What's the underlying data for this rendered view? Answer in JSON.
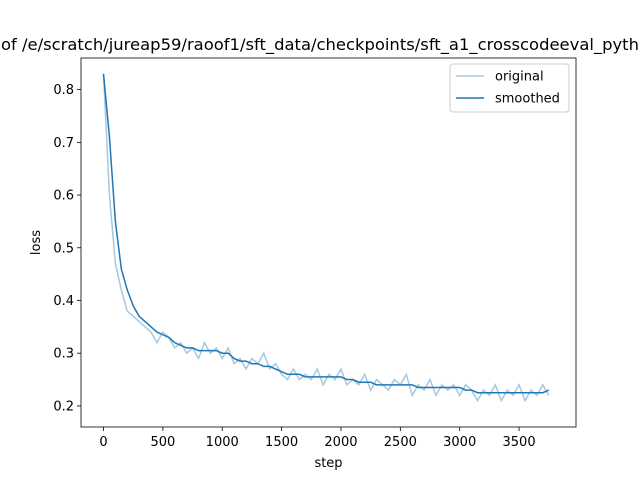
{
  "chart_data": {
    "type": "line",
    "title": "of /e/scratch/jureap59/raoof1/sft_data/checkpoints/sft_a1_crosscodeeval_pyth",
    "x_label": "step",
    "y_label": "loss",
    "x": [
      0,
      50,
      100,
      150,
      200,
      250,
      300,
      350,
      400,
      450,
      500,
      550,
      600,
      650,
      700,
      750,
      800,
      850,
      900,
      950,
      1000,
      1050,
      1100,
      1150,
      1200,
      1250,
      1300,
      1350,
      1400,
      1450,
      1500,
      1550,
      1600,
      1650,
      1700,
      1750,
      1800,
      1850,
      1900,
      1950,
      2000,
      2050,
      2100,
      2150,
      2200,
      2250,
      2300,
      2350,
      2400,
      2450,
      2500,
      2550,
      2600,
      2650,
      2700,
      2750,
      2800,
      2850,
      2900,
      2950,
      3000,
      3050,
      3100,
      3150,
      3200,
      3250,
      3300,
      3350,
      3400,
      3450,
      3500,
      3550,
      3600,
      3650,
      3700,
      3750
    ],
    "series": [
      {
        "name": "original",
        "color": "#a6c8e0",
        "values": [
          0.83,
          0.6,
          0.47,
          0.42,
          0.38,
          0.37,
          0.36,
          0.35,
          0.34,
          0.32,
          0.34,
          0.33,
          0.31,
          0.32,
          0.3,
          0.31,
          0.29,
          0.32,
          0.3,
          0.31,
          0.29,
          0.31,
          0.28,
          0.29,
          0.27,
          0.29,
          0.28,
          0.3,
          0.27,
          0.28,
          0.26,
          0.25,
          0.27,
          0.25,
          0.26,
          0.25,
          0.27,
          0.24,
          0.26,
          0.25,
          0.27,
          0.24,
          0.25,
          0.24,
          0.26,
          0.23,
          0.25,
          0.24,
          0.23,
          0.25,
          0.24,
          0.26,
          0.22,
          0.24,
          0.23,
          0.25,
          0.22,
          0.24,
          0.23,
          0.24,
          0.22,
          0.24,
          0.23,
          0.21,
          0.23,
          0.22,
          0.24,
          0.21,
          0.23,
          0.22,
          0.24,
          0.21,
          0.23,
          0.22,
          0.24,
          0.22
        ]
      },
      {
        "name": "smoothed",
        "color": "#1f77b4",
        "values": [
          0.83,
          0.71,
          0.55,
          0.46,
          0.42,
          0.39,
          0.37,
          0.36,
          0.35,
          0.34,
          0.335,
          0.33,
          0.32,
          0.315,
          0.31,
          0.31,
          0.305,
          0.305,
          0.305,
          0.305,
          0.3,
          0.3,
          0.29,
          0.285,
          0.285,
          0.28,
          0.28,
          0.275,
          0.275,
          0.27,
          0.265,
          0.26,
          0.26,
          0.26,
          0.255,
          0.255,
          0.255,
          0.255,
          0.255,
          0.255,
          0.255,
          0.25,
          0.25,
          0.245,
          0.245,
          0.245,
          0.24,
          0.24,
          0.24,
          0.24,
          0.24,
          0.24,
          0.24,
          0.235,
          0.235,
          0.235,
          0.235,
          0.235,
          0.235,
          0.235,
          0.235,
          0.23,
          0.23,
          0.225,
          0.225,
          0.225,
          0.225,
          0.225,
          0.225,
          0.225,
          0.225,
          0.225,
          0.225,
          0.225,
          0.225,
          0.23
        ]
      }
    ],
    "xlim": [
      -189.5,
      3979.5
    ],
    "ylim": [
      0.16,
      0.86
    ],
    "xticks": [
      0,
      500,
      1000,
      1500,
      2000,
      2500,
      3000,
      3500
    ],
    "yticks": [
      0.2,
      0.3,
      0.4,
      0.5,
      0.6,
      0.7,
      0.8
    ],
    "grid": false,
    "legend": "upper right"
  }
}
